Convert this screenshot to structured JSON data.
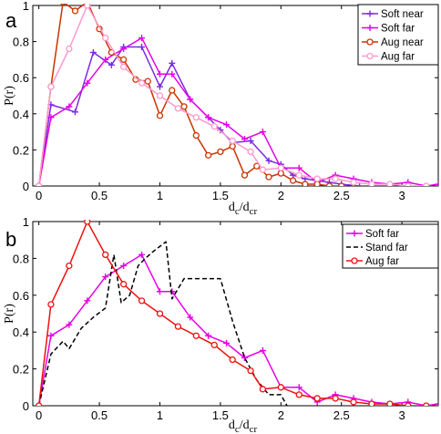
{
  "chart_data": [
    {
      "type": "line",
      "panel_label": "a",
      "xlabel": "d_c/d_cr",
      "xlabel_main": "d",
      "xlabel_sub1": "c",
      "xlabel_sub2": "cr",
      "xlabel_slash": "/",
      "ylabel": "P(r)",
      "xlim": [
        -0.05,
        3.3
      ],
      "ylim": [
        0,
        1
      ],
      "xticks": [
        0,
        0.5,
        1,
        1.5,
        2,
        2.5,
        3
      ],
      "xtick_labels": [
        "0",
        "0.5",
        "1",
        "1.5",
        "2",
        "2.5",
        "3"
      ],
      "yticks": [
        0,
        0.2,
        0.4,
        0.6,
        0.8,
        1
      ],
      "ytick_labels": [
        "0",
        "0.2",
        "0.4",
        "0.6",
        "0.8",
        "1"
      ],
      "legend_position": "top-right",
      "series": [
        {
          "name": "Soft near",
          "color": "#7a2be2",
          "marker": "plus",
          "dash": "",
          "x": [
            0,
            0.1,
            0.3,
            0.45,
            0.6,
            0.7,
            0.85,
            1.0,
            1.1,
            1.25,
            1.4,
            1.5,
            1.6,
            1.75,
            1.9,
            2.0,
            2.1,
            2.2,
            2.3,
            2.4,
            2.5,
            2.65
          ],
          "y": [
            0,
            0.45,
            0.41,
            0.74,
            0.67,
            0.77,
            0.77,
            0.55,
            0.68,
            0.48,
            0.38,
            0.31,
            0.24,
            0.25,
            0.14,
            0.12,
            0.06,
            0.04,
            0.03,
            0.02,
            0.01,
            0.0
          ]
        },
        {
          "name": "Soft far",
          "color": "#e600e6",
          "marker": "plus",
          "dash": "",
          "x": [
            0,
            0.1,
            0.25,
            0.4,
            0.55,
            0.7,
            0.85,
            1.0,
            1.1,
            1.25,
            1.4,
            1.55,
            1.7,
            1.85,
            2.0,
            2.15,
            2.3,
            2.45,
            2.6,
            2.75,
            2.9,
            3.05,
            3.2,
            3.3
          ],
          "y": [
            0,
            0.38,
            0.44,
            0.57,
            0.7,
            0.76,
            0.82,
            0.62,
            0.62,
            0.48,
            0.38,
            0.34,
            0.26,
            0.3,
            0.1,
            0.1,
            0.02,
            0.06,
            0.04,
            0.02,
            0.01,
            0.02,
            0.0,
            0.01
          ]
        },
        {
          "name": "Aug near",
          "color": "#cc3300",
          "marker": "circle",
          "dash": "",
          "x": [
            0,
            0.1,
            0.2,
            0.3,
            0.4,
            0.5,
            0.6,
            0.7,
            0.8,
            0.9,
            1.0,
            1.1,
            1.2,
            1.3,
            1.4,
            1.5,
            1.6,
            1.7,
            1.8,
            1.9,
            2.0,
            2.1,
            2.2,
            2.3,
            2.4,
            2.5
          ],
          "y": [
            0,
            0.55,
            1.02,
            0.97,
            1.02,
            0.87,
            0.74,
            0.7,
            0.59,
            0.58,
            0.39,
            0.53,
            0.44,
            0.28,
            0.17,
            0.19,
            0.22,
            0.06,
            0.11,
            0.05,
            0.07,
            0.03,
            0.01,
            0.01,
            0.0,
            0.0
          ]
        },
        {
          "name": "Aug far",
          "color": "#ff99cc",
          "marker": "circle",
          "dash": "",
          "x": [
            0,
            0.1,
            0.25,
            0.4,
            0.55,
            0.7,
            0.85,
            1.0,
            1.15,
            1.3,
            1.45,
            1.6,
            1.75,
            1.85,
            2.0,
            2.15,
            2.3,
            2.45,
            2.6,
            2.75,
            2.9,
            3.05,
            3.2
          ],
          "y": [
            0,
            0.55,
            0.76,
            1.0,
            0.82,
            0.66,
            0.57,
            0.5,
            0.43,
            0.38,
            0.33,
            0.25,
            0.19,
            0.09,
            0.1,
            0.06,
            0.04,
            0.04,
            0.02,
            0.01,
            0.01,
            0.0,
            0.0
          ]
        }
      ]
    },
    {
      "type": "line",
      "panel_label": "b",
      "xlabel": "d_c/d_cr",
      "xlabel_main": "d",
      "xlabel_sub1": "c",
      "xlabel_sub2": "cr",
      "xlabel_slash": "/",
      "ylabel": "P(r)",
      "xlim": [
        -0.05,
        3.3
      ],
      "ylim": [
        0,
        1
      ],
      "xticks": [
        0,
        0.5,
        1,
        1.5,
        2,
        2.5,
        3
      ],
      "xtick_labels": [
        "0",
        "0.5",
        "1",
        "1.5",
        "2",
        "2.5",
        "3"
      ],
      "yticks": [
        0,
        0.2,
        0.4,
        0.6,
        0.8,
        1
      ],
      "ytick_labels": [
        "0",
        "0.2",
        "0.4",
        "0.6",
        "0.8",
        "1"
      ],
      "legend_position": "top-right",
      "series": [
        {
          "name": "Soft far",
          "color": "#e600e6",
          "marker": "plus",
          "dash": "",
          "x": [
            0,
            0.1,
            0.25,
            0.4,
            0.55,
            0.7,
            0.85,
            1.0,
            1.1,
            1.25,
            1.4,
            1.55,
            1.7,
            1.85,
            2.0,
            2.15,
            2.3,
            2.45,
            2.6,
            2.75,
            2.9,
            3.05,
            3.2,
            3.3
          ],
          "y": [
            0,
            0.38,
            0.44,
            0.57,
            0.7,
            0.76,
            0.82,
            0.62,
            0.62,
            0.48,
            0.38,
            0.34,
            0.26,
            0.3,
            0.1,
            0.1,
            0.02,
            0.06,
            0.04,
            0.02,
            0.01,
            0.02,
            0.0,
            0.01
          ]
        },
        {
          "name": "Stand far",
          "color": "#000000",
          "marker": "none",
          "dash": "5,3",
          "x": [
            0,
            0.1,
            0.2,
            0.25,
            0.35,
            0.45,
            0.55,
            0.62,
            0.68,
            0.75,
            0.82,
            0.88,
            0.95,
            1.05,
            1.1,
            1.2,
            1.3,
            1.4,
            1.5,
            1.6,
            1.7,
            1.8,
            1.9,
            2.0,
            2.05
          ],
          "y": [
            0,
            0.28,
            0.35,
            0.31,
            0.42,
            0.48,
            0.53,
            0.82,
            0.56,
            0.6,
            0.76,
            0.8,
            0.84,
            0.89,
            0.58,
            0.69,
            0.69,
            0.69,
            0.69,
            0.46,
            0.26,
            0.14,
            0.06,
            0.06,
            0.0
          ]
        },
        {
          "name": "Aug far",
          "color": "#ee1111",
          "marker": "circle",
          "dash": "",
          "x": [
            0,
            0.1,
            0.25,
            0.4,
            0.55,
            0.7,
            0.85,
            1.0,
            1.15,
            1.3,
            1.45,
            1.6,
            1.75,
            1.85,
            2.0,
            2.15,
            2.3,
            2.45,
            2.6,
            2.75,
            2.9,
            3.05,
            3.2
          ],
          "y": [
            0,
            0.55,
            0.76,
            1.0,
            0.82,
            0.66,
            0.57,
            0.5,
            0.43,
            0.38,
            0.33,
            0.25,
            0.19,
            0.09,
            0.1,
            0.06,
            0.04,
            0.04,
            0.02,
            0.01,
            0.01,
            0.0,
            0.0
          ]
        }
      ]
    }
  ]
}
